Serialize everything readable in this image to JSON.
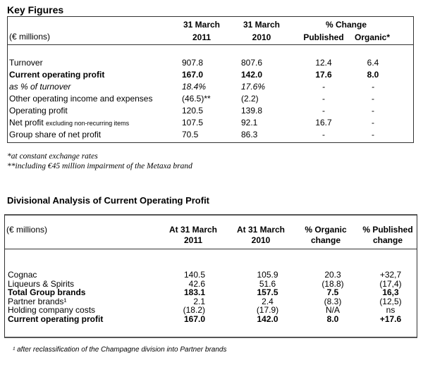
{
  "key_figures": {
    "title": "Key Figures",
    "unit_label": "(€ millions)",
    "col_2011_line1": "31 March",
    "col_2011_line2": "2011",
    "col_2010_line1": "31 March",
    "col_2010_line2": "2010",
    "change_header": "% Change",
    "published_header": "Published",
    "organic_header": "Organic*",
    "rows": [
      {
        "label": "Turnover",
        "label_suffix": "",
        "v2011": "907.8",
        "v2010": "807.6",
        "published": "12.4",
        "organic": "6.4",
        "style": "normal"
      },
      {
        "label": "Current operating profit",
        "label_suffix": "",
        "v2011": "167.0",
        "v2010": "142.0",
        "published": "17.6",
        "organic": "8.0",
        "style": "bold"
      },
      {
        "label": "as % of turnover",
        "label_suffix": "",
        "v2011": "18.4%",
        "v2010": "17.6%",
        "published": "-",
        "organic": "-",
        "style": "italic"
      },
      {
        "label": "Other operating income and expenses",
        "label_suffix": "",
        "v2011": "(46.5)**",
        "v2010": "(2.2)",
        "published": "-",
        "organic": "-",
        "style": "normal"
      },
      {
        "label": "Operating profit",
        "label_suffix": "",
        "v2011": "120.5",
        "v2010": "139.8",
        "published": "-",
        "organic": "-",
        "style": "normal"
      },
      {
        "label": "Net profit",
        "label_suffix": "excluding non-recurring items",
        "v2011": "107.5",
        "v2010": "92.1",
        "published": "16.7",
        "organic": "-",
        "style": "normal"
      },
      {
        "label": "Group share of net profit",
        "label_suffix": "",
        "v2011": "70.5",
        "v2010": "86.3",
        "published": "-",
        "organic": "-",
        "style": "normal"
      }
    ],
    "notes": [
      "*at constant exchange rates",
      "**including €45 million impairment of the Metaxa brand"
    ]
  },
  "divisional": {
    "title": "Divisional Analysis of Current Operating Profit",
    "unit_label": "(€ millions)",
    "col_2011_line1": "At 31 March",
    "col_2011_line2": "2011",
    "col_2010_line1": "At 31 March",
    "col_2010_line2": "2010",
    "organic_line1": "% Organic",
    "organic_line2": "change",
    "published_line1": "% Published",
    "published_line2": "change",
    "rows": [
      {
        "label": "Cognac",
        "v2011": "140.5",
        "v2010": "105.9",
        "organic": "20.3",
        "published": "+32,7",
        "style": "normal"
      },
      {
        "label": "Liqueurs & Spirits",
        "v2011": "42.6",
        "v2010": "51.6",
        "organic": "(18.8)",
        "published": "(17,4)",
        "style": "normal"
      },
      {
        "label": "Total Group brands",
        "v2011": "183.1",
        "v2010": "157.5",
        "organic": "7.5",
        "published": "16,3",
        "style": "bold"
      },
      {
        "label": "Partner brands¹",
        "v2011": "2.1",
        "v2010": "2.4",
        "organic": "(8.3)",
        "published": "(12,5)",
        "style": "normal"
      },
      {
        "label": "Holding company costs",
        "v2011": "(18.2)",
        "v2010": "(17.9)",
        "organic": "N/A",
        "published": "ns",
        "style": "normal"
      },
      {
        "label": "Current operating profit",
        "v2011": "167.0",
        "v2010": "142.0",
        "organic": "8.0",
        "published": "+17.6",
        "style": "bold"
      }
    ],
    "footnote": "¹ after reclassification of the Champagne division into Partner brands"
  }
}
